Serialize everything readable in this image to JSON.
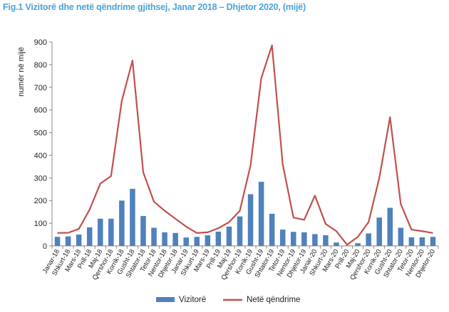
{
  "chart_data": {
    "type": "bar+line",
    "title": "Fig.1 Vizitorë dhe netë qëndrime gjithsej, Janar 2018 – Dhjetor 2020, (mijë)",
    "ylabel": "numër në mijë",
    "ylim": [
      0,
      900
    ],
    "yticks": [
      0,
      100,
      200,
      300,
      400,
      500,
      600,
      700,
      800,
      900
    ],
    "categories": [
      "Janar-18",
      "Shkurt-18",
      "Mars-18",
      "Prill-18",
      "Maj-18",
      "Qershor-18",
      "Korrik-18",
      "Gusht-18",
      "Shtator-18",
      "Tetor-18",
      "Nentor-18",
      "Dhjetor-18",
      "Janar-19",
      "Shkurt-19",
      "Mars-19",
      "Prill-19",
      "Maj-19",
      "Qershor-19",
      "Korrik-19",
      "Gusht-19",
      "Shtator-19",
      "Tetor-19",
      "Nentor-19",
      "Dhjetor-19",
      "Janar-20",
      "Shkurt-20",
      "Mars-20",
      "Prill-20",
      "Maj-20",
      "Qershor-20",
      "Korrik-20",
      "Gusht-20",
      "Shtator-20",
      "Tetor-20",
      "Nentor-20",
      "Dhjetor-20"
    ],
    "series": [
      {
        "name": "Vizitorë",
        "type": "bar",
        "color": "#4f81bd",
        "values": [
          40,
          42,
          50,
          82,
          120,
          120,
          200,
          252,
          132,
          80,
          60,
          57,
          37,
          40,
          47,
          63,
          85,
          130,
          228,
          283,
          142,
          72,
          62,
          60,
          52,
          47,
          15,
          2,
          12,
          55,
          125,
          168,
          80,
          38,
          38,
          40
        ]
      },
      {
        "name": "Netë qëndrime",
        "type": "line",
        "color": "#c0504d",
        "values": [
          57,
          58,
          75,
          160,
          275,
          308,
          640,
          818,
          325,
          195,
          155,
          120,
          85,
          57,
          60,
          78,
          105,
          155,
          355,
          740,
          885,
          360,
          125,
          115,
          222,
          97,
          65,
          5,
          40,
          105,
          300,
          568,
          185,
          72,
          65,
          57
        ]
      }
    ],
    "legend_position": "bottom",
    "grid": false
  }
}
